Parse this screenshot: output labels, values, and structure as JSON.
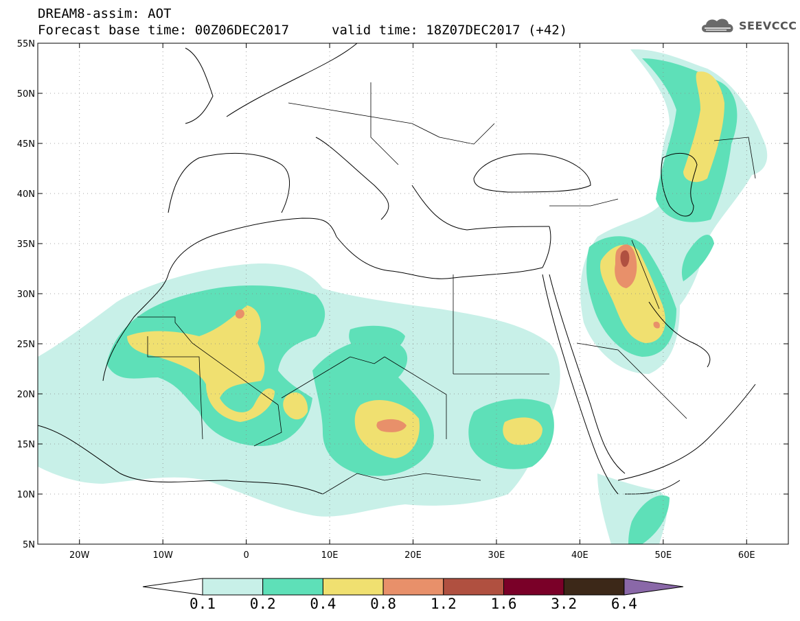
{
  "header": {
    "title": "DREAM8-assim: AOT",
    "base_time": "Forecast base time: 00Z06DEC2017",
    "valid_time": "valid time: 18Z07DEC2017 (+42)"
  },
  "logo": {
    "text": "SEEVCCC",
    "icon": "cloud-icon"
  },
  "map": {
    "lon_range": [
      -25,
      65
    ],
    "lat_range": [
      5,
      55
    ],
    "lon_ticks": [
      {
        "value": -20,
        "label": "20W"
      },
      {
        "value": -10,
        "label": "10W"
      },
      {
        "value": 0,
        "label": "0"
      },
      {
        "value": 10,
        "label": "10E"
      },
      {
        "value": 20,
        "label": "20E"
      },
      {
        "value": 30,
        "label": "30E"
      },
      {
        "value": 40,
        "label": "40E"
      },
      {
        "value": 50,
        "label": "50E"
      },
      {
        "value": 60,
        "label": "60E"
      }
    ],
    "lat_ticks": [
      {
        "value": 5,
        "label": "5N"
      },
      {
        "value": 10,
        "label": "10N"
      },
      {
        "value": 15,
        "label": "15N"
      },
      {
        "value": 20,
        "label": "20N"
      },
      {
        "value": 25,
        "label": "25N"
      },
      {
        "value": 30,
        "label": "30N"
      },
      {
        "value": 35,
        "label": "35N"
      },
      {
        "value": 40,
        "label": "40N"
      },
      {
        "value": 45,
        "label": "45N"
      },
      {
        "value": 50,
        "label": "50N"
      },
      {
        "value": 55,
        "label": "55N"
      }
    ],
    "gridlines": "dotted"
  },
  "colorbar": {
    "labels": [
      "0.1",
      "0.2",
      "0.4",
      "0.8",
      "1.2",
      "1.6",
      "3.2",
      "6.4"
    ],
    "under_color": "#ffffff",
    "colors": [
      "#c8f0e8",
      "#5ee0b8",
      "#f0e070",
      "#e8906a",
      "#b05040",
      "#7a0028",
      "#3c2818"
    ],
    "over_color": "#8a68a8"
  },
  "aot_palette": {
    "c1": "#c8f0e8",
    "c2": "#5ee0b8",
    "c3": "#f0e070",
    "c4": "#e8906a",
    "c5": "#b05040"
  }
}
